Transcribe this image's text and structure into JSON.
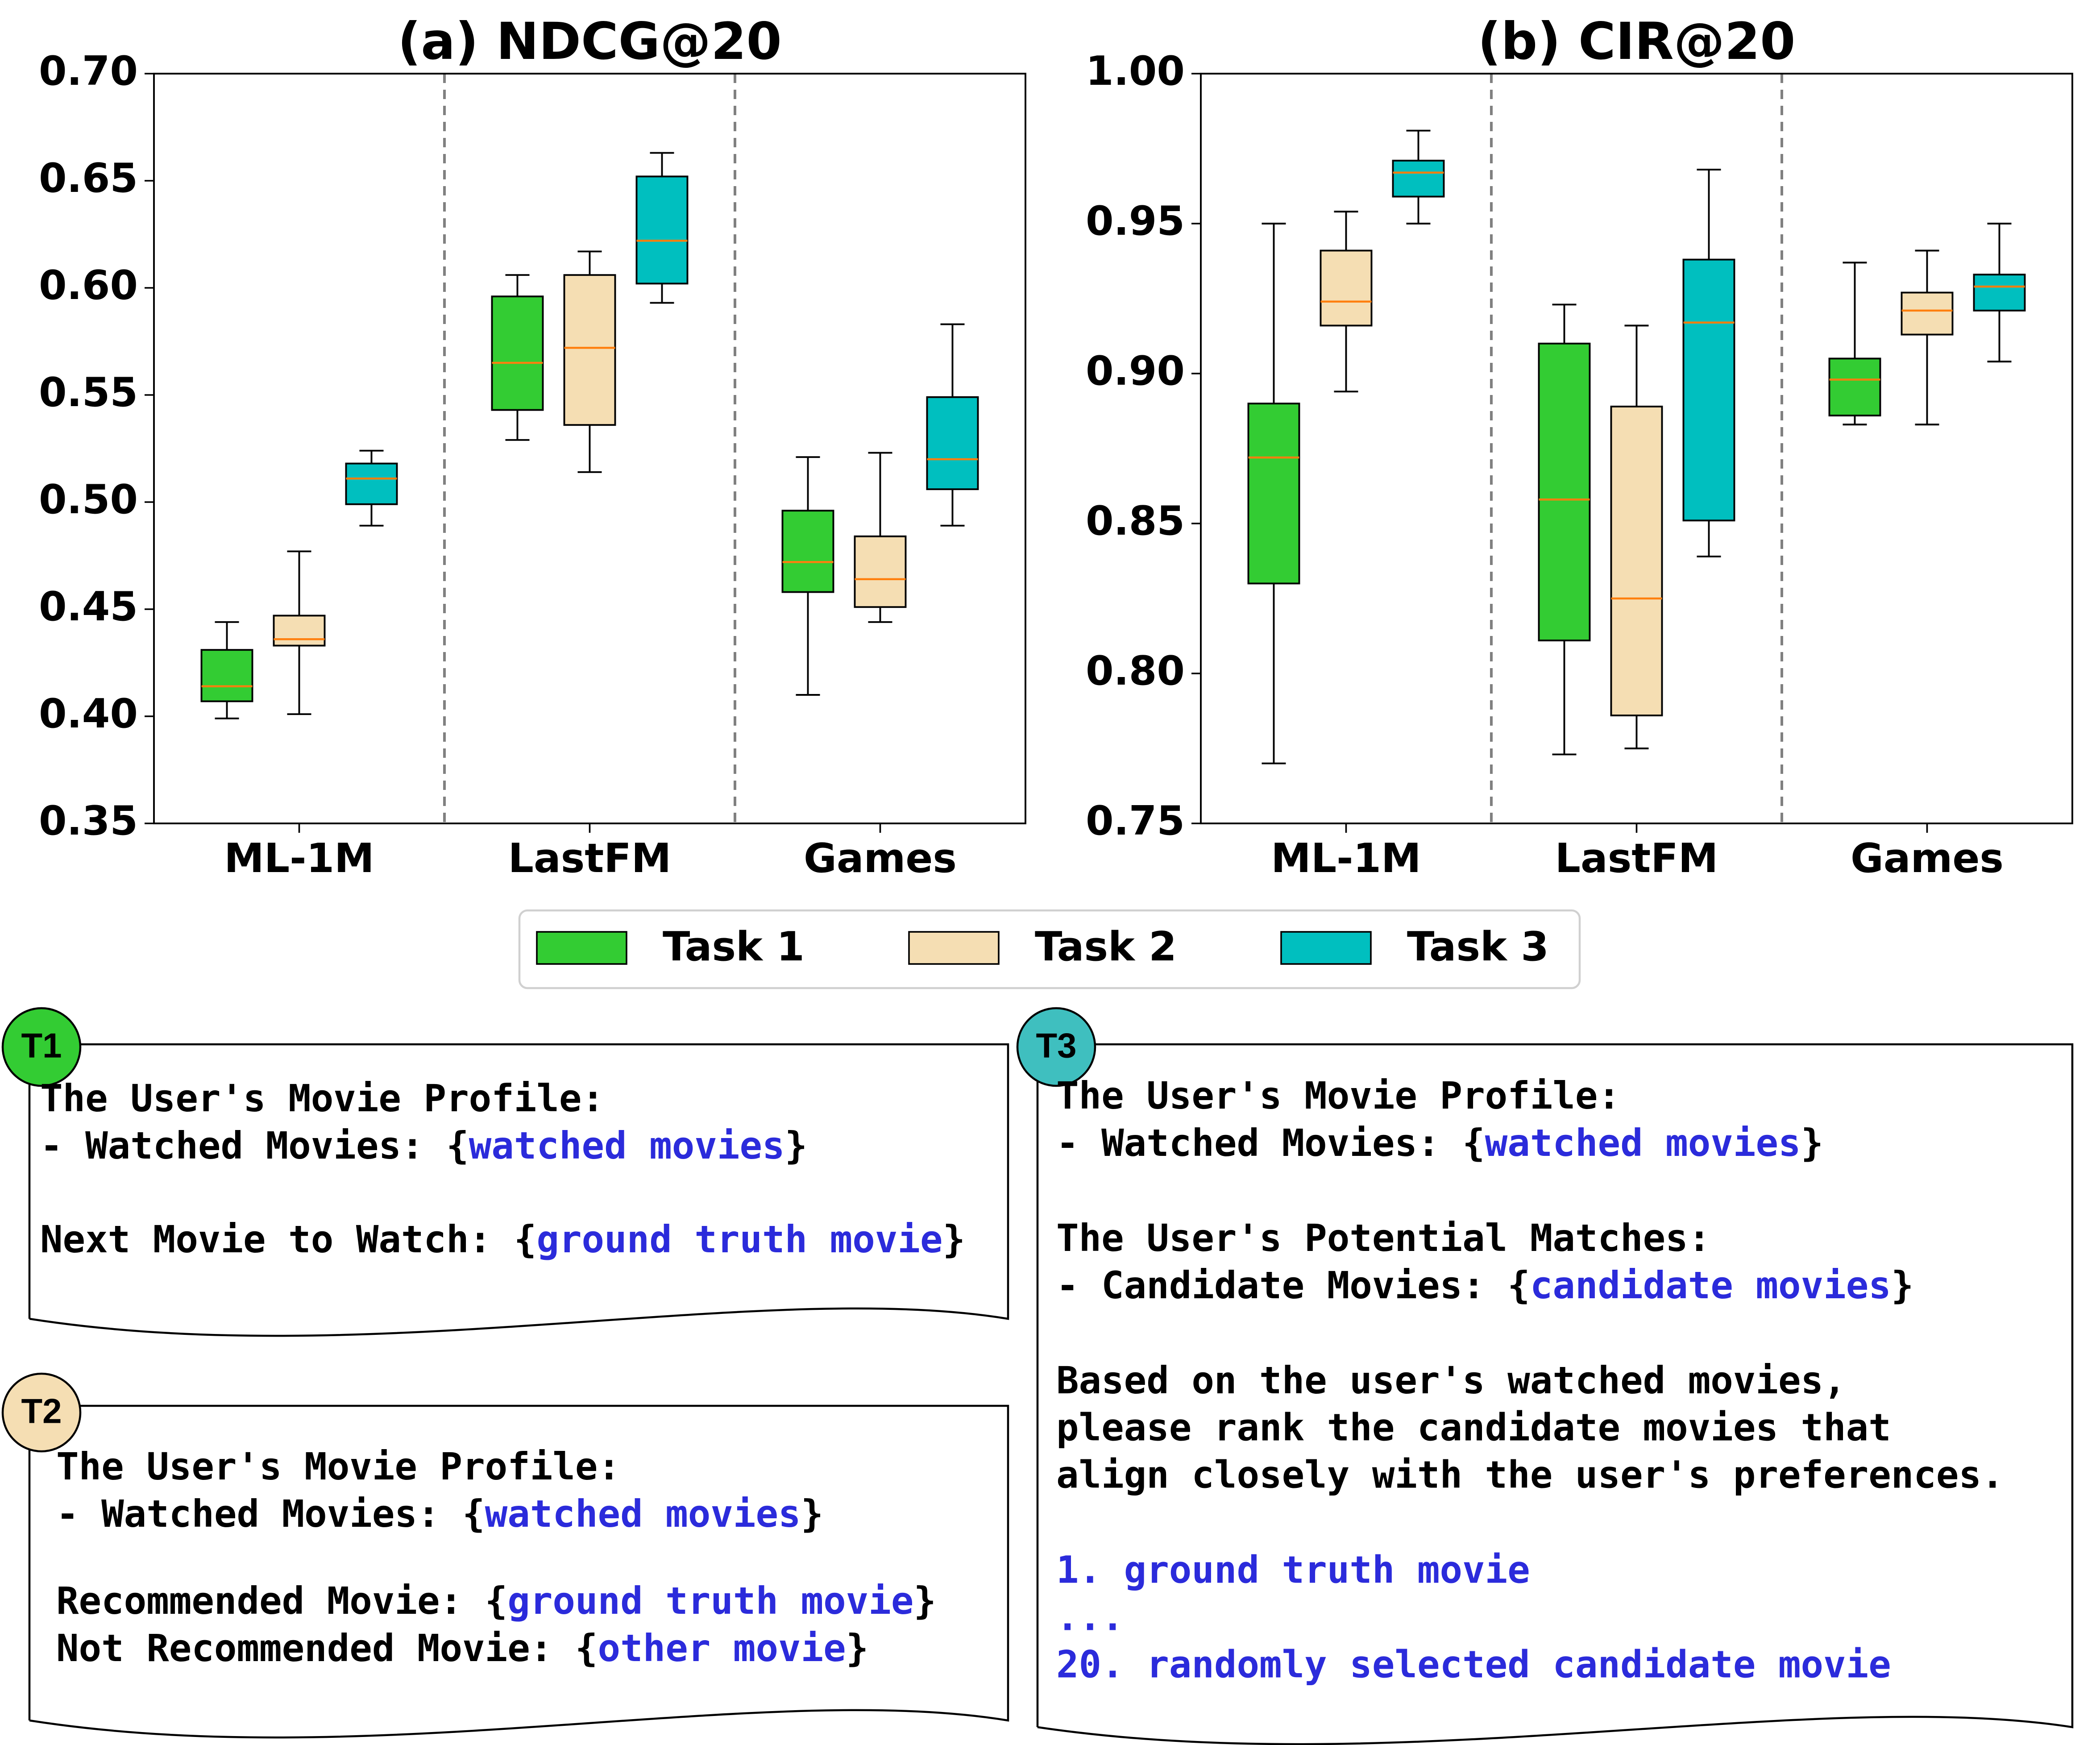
{
  "chart_data": [
    {
      "type": "box",
      "title": "(a) NDCG@20",
      "categories": [
        "ML-1M",
        "LastFM",
        "Games"
      ],
      "ylim": [
        0.35,
        0.7
      ],
      "yticks": [
        {
          "value": 0.35,
          "label": "0.35"
        },
        {
          "value": 0.4,
          "label": "0.40"
        },
        {
          "value": 0.45,
          "label": "0.45"
        },
        {
          "value": 0.5,
          "label": "0.50"
        },
        {
          "value": 0.55,
          "label": "0.55"
        },
        {
          "value": 0.6,
          "label": "0.60"
        },
        {
          "value": 0.65,
          "label": "0.65"
        },
        {
          "value": 0.7,
          "label": "0.70"
        }
      ],
      "median_color": "#ff7f0e",
      "series": [
        {
          "name": "Task 1",
          "color": "#33cc33",
          "values": [
            {
              "min": 0.399,
              "q1": 0.407,
              "median": 0.414,
              "q3": 0.431,
              "max": 0.444
            },
            {
              "min": 0.529,
              "q1": 0.543,
              "median": 0.565,
              "q3": 0.596,
              "max": 0.606
            },
            {
              "min": 0.41,
              "q1": 0.458,
              "median": 0.472,
              "q3": 0.496,
              "max": 0.521
            }
          ]
        },
        {
          "name": "Task 2",
          "color": "#f5deb3",
          "values": [
            {
              "min": 0.401,
              "q1": 0.433,
              "median": 0.436,
              "q3": 0.447,
              "max": 0.477
            },
            {
              "min": 0.514,
              "q1": 0.536,
              "median": 0.572,
              "q3": 0.606,
              "max": 0.617
            },
            {
              "min": 0.444,
              "q1": 0.451,
              "median": 0.464,
              "q3": 0.484,
              "max": 0.523
            }
          ]
        },
        {
          "name": "Task 3",
          "color": "#00bfbf",
          "values": [
            {
              "min": 0.489,
              "q1": 0.499,
              "median": 0.511,
              "q3": 0.518,
              "max": 0.524
            },
            {
              "min": 0.593,
              "q1": 0.602,
              "median": 0.622,
              "q3": 0.652,
              "max": 0.663
            },
            {
              "min": 0.489,
              "q1": 0.506,
              "median": 0.52,
              "q3": 0.549,
              "max": 0.583
            }
          ]
        }
      ]
    },
    {
      "type": "box",
      "title": "(b) CIR@20",
      "categories": [
        "ML-1M",
        "LastFM",
        "Games"
      ],
      "ylim": [
        0.75,
        1.0
      ],
      "yticks": [
        {
          "value": 0.75,
          "label": "0.75"
        },
        {
          "value": 0.8,
          "label": "0.80"
        },
        {
          "value": 0.85,
          "label": "0.85"
        },
        {
          "value": 0.9,
          "label": "0.90"
        },
        {
          "value": 0.95,
          "label": "0.95"
        },
        {
          "value": 1.0,
          "label": "1.00"
        }
      ],
      "median_color": "#ff7f0e",
      "series": [
        {
          "name": "Task 1",
          "color": "#33cc33",
          "values": [
            {
              "min": 0.77,
              "q1": 0.83,
              "median": 0.872,
              "q3": 0.89,
              "max": 0.95
            },
            {
              "min": 0.773,
              "q1": 0.811,
              "median": 0.858,
              "q3": 0.91,
              "max": 0.923
            },
            {
              "min": 0.883,
              "q1": 0.886,
              "median": 0.898,
              "q3": 0.905,
              "max": 0.937
            }
          ]
        },
        {
          "name": "Task 2",
          "color": "#f5deb3",
          "values": [
            {
              "min": 0.894,
              "q1": 0.916,
              "median": 0.924,
              "q3": 0.941,
              "max": 0.954
            },
            {
              "min": 0.775,
              "q1": 0.786,
              "median": 0.825,
              "q3": 0.889,
              "max": 0.916
            },
            {
              "min": 0.883,
              "q1": 0.913,
              "median": 0.921,
              "q3": 0.927,
              "max": 0.941
            }
          ]
        },
        {
          "name": "Task 3",
          "color": "#00bfbf",
          "values": [
            {
              "min": 0.95,
              "q1": 0.959,
              "median": 0.967,
              "q3": 0.971,
              "max": 0.981
            },
            {
              "min": 0.839,
              "q1": 0.851,
              "median": 0.917,
              "q3": 0.938,
              "max": 0.968
            },
            {
              "min": 0.904,
              "q1": 0.921,
              "median": 0.929,
              "q3": 0.933,
              "max": 0.95
            }
          ]
        }
      ]
    }
  ],
  "prompts": [
    {
      "label": "T1",
      "color": "#33cc33",
      "paragraphs": [
        [
          [
            "The User's Movie Profile:"
          ],
          [
            "- Watched Movies: {",
            {
              "text": "watched movies",
              "color": "#2b2bdb"
            },
            "}"
          ]
        ],
        [
          [
            "Next Movie to Watch: {",
            {
              "text": "ground truth movie",
              "color": "#2b2bdb"
            },
            "}"
          ]
        ]
      ]
    },
    {
      "label": "T2",
      "color": "#f5deb3",
      "paragraphs": [
        [
          [
            "The User's Movie Profile:"
          ],
          [
            "- Watched Movies: {",
            {
              "text": "watched movies",
              "color": "#2b2bdb"
            },
            "}"
          ]
        ],
        [
          [
            "Recommended Movie: {",
            {
              "text": "ground truth movie",
              "color": "#2b2bdb"
            },
            "}"
          ],
          [
            "Not Recommended Movie: {",
            {
              "text": "other movie",
              "color": "#2b2bdb"
            },
            "}"
          ]
        ]
      ]
    },
    {
      "label": "T3",
      "color": "#3fbfbf",
      "paragraphs": [
        [
          [
            "The User's Movie Profile:"
          ],
          [
            "- Watched Movies: {",
            {
              "text": "watched movies",
              "color": "#2b2bdb"
            },
            "}"
          ]
        ],
        [
          [
            "The User's Potential Matches:"
          ],
          [
            "- Candidate Movies: {",
            {
              "text": "candidate movies",
              "color": "#2b2bdb"
            },
            "}"
          ]
        ],
        [
          [
            "Based on the user's watched movies,"
          ],
          [
            "please rank the candidate movies that"
          ],
          [
            "align closely with the user's preferences."
          ]
        ],
        [
          [
            {
              "text": "1. ground truth movie",
              "color": "#2b2bdb"
            }
          ],
          [
            {
              "text": "...",
              "color": "#2b2bdb"
            }
          ],
          [
            {
              "text": "20. randomly selected candidate movie",
              "color": "#2b2bdb"
            }
          ]
        ]
      ]
    }
  ]
}
